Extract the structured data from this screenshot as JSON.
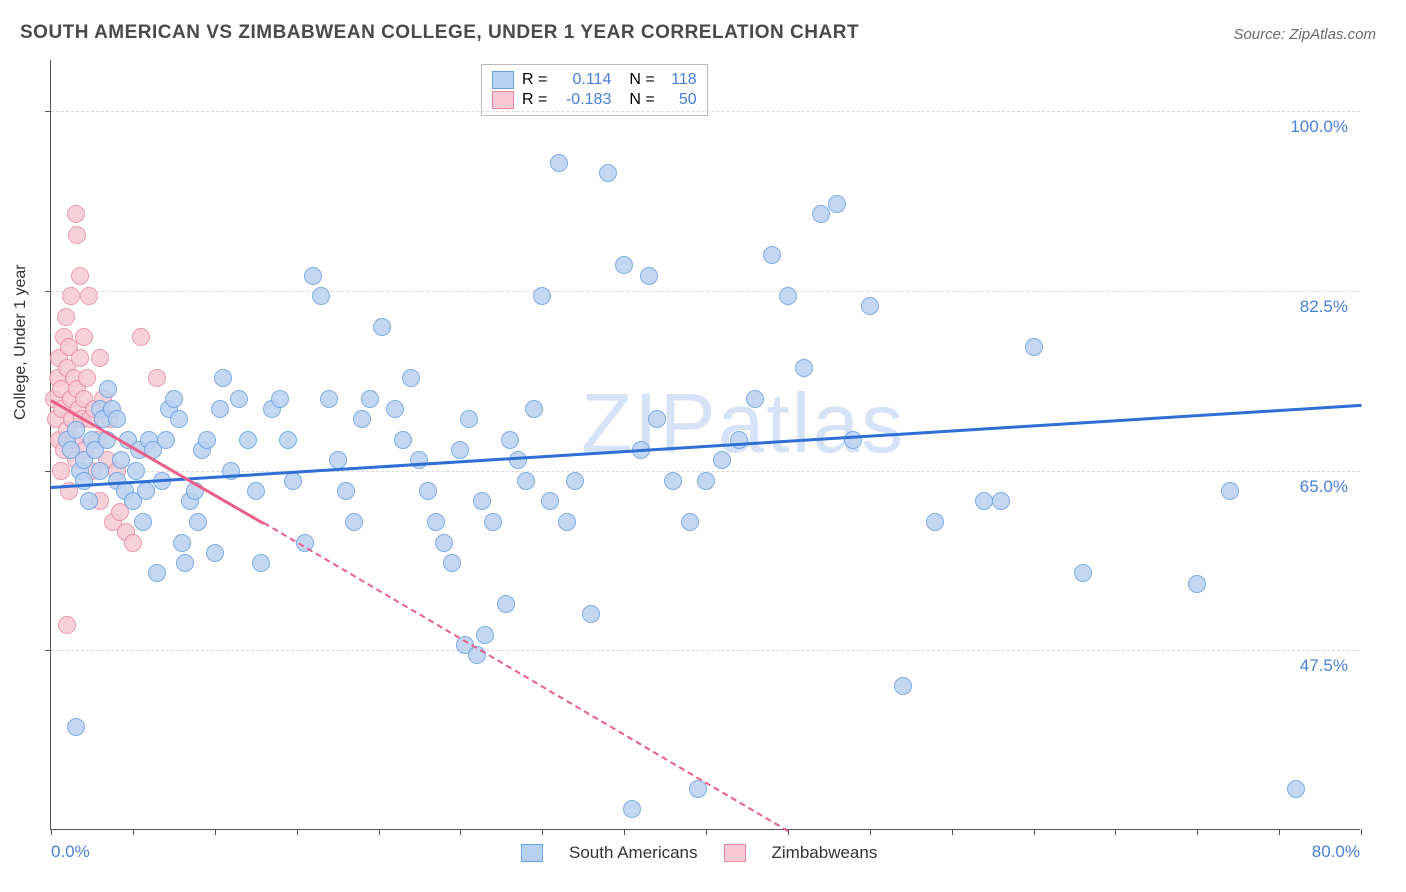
{
  "title": "SOUTH AMERICAN VS ZIMBABWEAN COLLEGE, UNDER 1 YEAR CORRELATION CHART",
  "source": "Source: ZipAtlas.com",
  "watermark": "ZIPatlas",
  "chart": {
    "type": "scatter",
    "ylabel": "College, Under 1 year",
    "xlim": [
      0,
      80
    ],
    "ylim": [
      30,
      105
    ],
    "x_ticks_minor": [
      0,
      5,
      10,
      15,
      20,
      25,
      30,
      35,
      40,
      45,
      50,
      55,
      60,
      65,
      70,
      75,
      80
    ],
    "x_tick_labels": [
      {
        "x": 0,
        "label": "0.0%"
      },
      {
        "x": 80,
        "label": "80.0%"
      }
    ],
    "y_gridlines": [
      47.5,
      65.0,
      82.5,
      100.0
    ],
    "y_tick_labels": [
      {
        "y": 47.5,
        "label": "47.5%"
      },
      {
        "y": 65.0,
        "label": "65.0%"
      },
      {
        "y": 82.5,
        "label": "82.5%"
      },
      {
        "y": 100.0,
        "label": "100.0%"
      }
    ],
    "background_color": "#ffffff",
    "grid_color": "#d8d8d8",
    "series": [
      {
        "name": "South Americans",
        "color_fill": "#b9d1f0",
        "color_stroke": "#6a9fe0",
        "trend_color": "#2e6fd6",
        "R": "0.114",
        "N": "118",
        "trend": {
          "x1": 0,
          "y1": 63.5,
          "x2": 80,
          "y2": 71.5
        },
        "points": [
          [
            1.0,
            68
          ],
          [
            1.2,
            67
          ],
          [
            1.5,
            69
          ],
          [
            1.8,
            65
          ],
          [
            2.0,
            66
          ],
          [
            2.0,
            64
          ],
          [
            2.3,
            62
          ],
          [
            2.5,
            68
          ],
          [
            2.7,
            67
          ],
          [
            3.0,
            65
          ],
          [
            3.0,
            71
          ],
          [
            3.2,
            70
          ],
          [
            3.4,
            68
          ],
          [
            3.5,
            73
          ],
          [
            3.7,
            71
          ],
          [
            4.0,
            64
          ],
          [
            4.0,
            70
          ],
          [
            4.3,
            66
          ],
          [
            4.5,
            63
          ],
          [
            4.7,
            68
          ],
          [
            5.0,
            62
          ],
          [
            5.2,
            65
          ],
          [
            5.4,
            67
          ],
          [
            5.6,
            60
          ],
          [
            5.8,
            63
          ],
          [
            6.0,
            68
          ],
          [
            6.2,
            67
          ],
          [
            6.5,
            55
          ],
          [
            6.8,
            64
          ],
          [
            7.0,
            68
          ],
          [
            7.2,
            71
          ],
          [
            7.5,
            72
          ],
          [
            7.8,
            70
          ],
          [
            8.0,
            58
          ],
          [
            8.2,
            56
          ],
          [
            8.5,
            62
          ],
          [
            8.8,
            63
          ],
          [
            9.0,
            60
          ],
          [
            9.2,
            67
          ],
          [
            9.5,
            68
          ],
          [
            10.0,
            57
          ],
          [
            10.3,
            71
          ],
          [
            10.5,
            74
          ],
          [
            11.0,
            65
          ],
          [
            11.5,
            72
          ],
          [
            12.0,
            68
          ],
          [
            12.5,
            63
          ],
          [
            12.8,
            56
          ],
          [
            13.5,
            71
          ],
          [
            14.0,
            72
          ],
          [
            14.5,
            68
          ],
          [
            14.8,
            64
          ],
          [
            15.5,
            58
          ],
          [
            16.0,
            84
          ],
          [
            16.5,
            82
          ],
          [
            17.0,
            72
          ],
          [
            17.5,
            66
          ],
          [
            18.0,
            63
          ],
          [
            18.5,
            60
          ],
          [
            19.0,
            70
          ],
          [
            19.5,
            72
          ],
          [
            20.2,
            79
          ],
          [
            21.0,
            71
          ],
          [
            21.5,
            68
          ],
          [
            22.0,
            74
          ],
          [
            22.5,
            66
          ],
          [
            23.0,
            63
          ],
          [
            23.5,
            60
          ],
          [
            24.0,
            58
          ],
          [
            24.5,
            56
          ],
          [
            25.0,
            67
          ],
          [
            25.3,
            48
          ],
          [
            25.5,
            70
          ],
          [
            26.0,
            47
          ],
          [
            26.3,
            62
          ],
          [
            26.5,
            49
          ],
          [
            27.0,
            60
          ],
          [
            27.8,
            52
          ],
          [
            28.0,
            68
          ],
          [
            28.5,
            66
          ],
          [
            29.0,
            64
          ],
          [
            29.5,
            71
          ],
          [
            30.0,
            82
          ],
          [
            30.5,
            62
          ],
          [
            31.0,
            95
          ],
          [
            31.5,
            60
          ],
          [
            32.0,
            64
          ],
          [
            33.0,
            51
          ],
          [
            34.0,
            94
          ],
          [
            35.0,
            85
          ],
          [
            35.5,
            32
          ],
          [
            36.0,
            67
          ],
          [
            36.5,
            84
          ],
          [
            37.0,
            70
          ],
          [
            38.0,
            64
          ],
          [
            39.0,
            60
          ],
          [
            39.5,
            34
          ],
          [
            40.0,
            64
          ],
          [
            41.0,
            66
          ],
          [
            42.0,
            68
          ],
          [
            43.0,
            72
          ],
          [
            44.0,
            86
          ],
          [
            45.0,
            82
          ],
          [
            46.0,
            75
          ],
          [
            47.0,
            90
          ],
          [
            48.0,
            91
          ],
          [
            49.0,
            68
          ],
          [
            50.0,
            81
          ],
          [
            52.0,
            44
          ],
          [
            54.0,
            60
          ],
          [
            57.0,
            62
          ],
          [
            58.0,
            62
          ],
          [
            60.0,
            77
          ],
          [
            63.0,
            55
          ],
          [
            70.0,
            54
          ],
          [
            72.0,
            63
          ],
          [
            76.0,
            34
          ],
          [
            1.5,
            40
          ]
        ]
      },
      {
        "name": "Zimbabweans",
        "color_fill": "#f6c9d4",
        "color_stroke": "#e88aa4",
        "trend_color": "#e85f88",
        "R": "-0.183",
        "N": "50",
        "trend_solid": {
          "x1": 0,
          "y1": 72,
          "x2": 13,
          "y2": 60
        },
        "trend_dash": {
          "x1": 13,
          "y1": 60,
          "x2": 45,
          "y2": 30
        },
        "points": [
          [
            0.2,
            72
          ],
          [
            0.3,
            70
          ],
          [
            0.4,
            74
          ],
          [
            0.5,
            68
          ],
          [
            0.5,
            76
          ],
          [
            0.6,
            73
          ],
          [
            0.6,
            65
          ],
          [
            0.7,
            71
          ],
          [
            0.8,
            78
          ],
          [
            0.8,
            67
          ],
          [
            0.9,
            80
          ],
          [
            1.0,
            69
          ],
          [
            1.0,
            75
          ],
          [
            1.1,
            77
          ],
          [
            1.1,
            63
          ],
          [
            1.2,
            72
          ],
          [
            1.2,
            82
          ],
          [
            1.3,
            70
          ],
          [
            1.4,
            74
          ],
          [
            1.4,
            68
          ],
          [
            1.5,
            90
          ],
          [
            1.5,
            66
          ],
          [
            1.6,
            73
          ],
          [
            1.6,
            88
          ],
          [
            1.7,
            71
          ],
          [
            1.8,
            84
          ],
          [
            1.8,
            76
          ],
          [
            1.9,
            70
          ],
          [
            2.0,
            72
          ],
          [
            2.0,
            78
          ],
          [
            2.1,
            67
          ],
          [
            2.2,
            74
          ],
          [
            2.3,
            82
          ],
          [
            2.4,
            70
          ],
          [
            2.5,
            65
          ],
          [
            2.6,
            71
          ],
          [
            2.8,
            68
          ],
          [
            3.0,
            76
          ],
          [
            3.0,
            62
          ],
          [
            3.2,
            72
          ],
          [
            3.4,
            66
          ],
          [
            3.6,
            70
          ],
          [
            3.8,
            60
          ],
          [
            4.0,
            65
          ],
          [
            4.2,
            61
          ],
          [
            4.6,
            59
          ],
          [
            5.0,
            58
          ],
          [
            5.5,
            78
          ],
          [
            6.5,
            74
          ],
          [
            1.0,
            50
          ]
        ]
      }
    ]
  }
}
